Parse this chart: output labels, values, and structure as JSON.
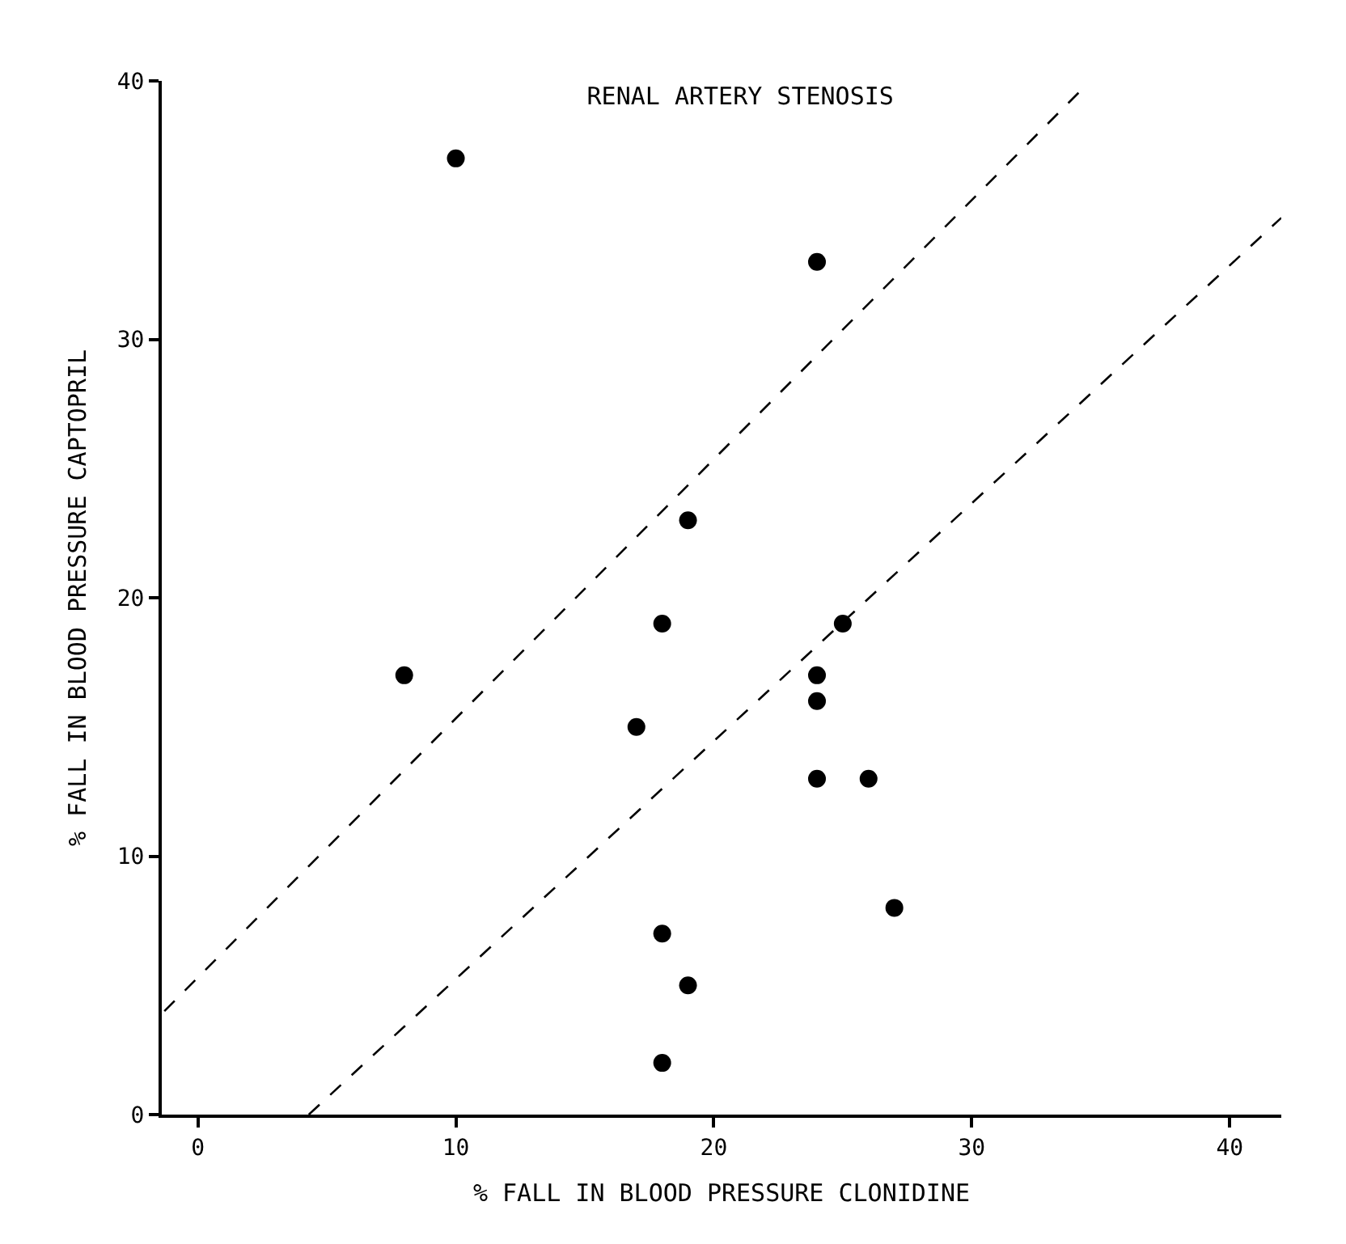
{
  "chart_data": {
    "type": "scatter",
    "title": "RENAL ARTERY STENOSIS",
    "xlabel": "% FALL IN BLOOD PRESSURE CLONIDINE",
    "ylabel": "% FALL IN BLOOD PRESSURE CAPTOPRIL",
    "xlim": [
      -1.4,
      42
    ],
    "ylim": [
      0,
      40
    ],
    "xticks": [
      0,
      10,
      20,
      30,
      40
    ],
    "yticks": [
      0,
      10,
      20,
      30,
      40
    ],
    "series": [
      {
        "marker": "circle",
        "color": "#000000",
        "x": [
          10,
          24,
          19,
          18,
          25,
          24,
          24,
          17,
          8,
          24,
          26,
          27,
          18,
          19,
          18
        ],
        "values": [
          37,
          33,
          23,
          19,
          19,
          17,
          16,
          15,
          17,
          13,
          13,
          8,
          7,
          5,
          2
        ]
      },
      {
        "type": "line",
        "marker": "none",
        "line_style": "dashed",
        "color": "#000000",
        "x": [
          -1.3,
          34.3
        ],
        "values": [
          4,
          39.7
        ]
      },
      {
        "type": "line",
        "marker": "none",
        "line_style": "dashed",
        "color": "#000000",
        "x": [
          4.3,
          42
        ],
        "values": [
          0,
          34.7
        ]
      }
    ]
  }
}
